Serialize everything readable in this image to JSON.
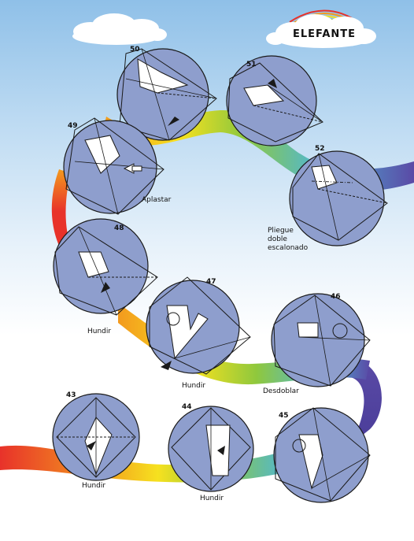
{
  "title": "ELEFANTE",
  "steps": [
    {
      "number": "43",
      "caption": "Hundir"
    },
    {
      "number": "44",
      "caption": "Hundir"
    },
    {
      "number": "45",
      "caption": ""
    },
    {
      "number": "46",
      "caption": "Desdoblar"
    },
    {
      "number": "47",
      "caption": "Hundir"
    },
    {
      "number": "48",
      "caption": "Hundir"
    },
    {
      "number": "49",
      "caption": "Aplastar"
    },
    {
      "number": "50",
      "caption": ""
    },
    {
      "number": "51",
      "caption": ""
    },
    {
      "number": "52",
      "caption": "Pliegue doble escalonado"
    }
  ],
  "colors": {
    "paper_blue": "#8e9ecd",
    "paper_white": "#ffffff",
    "sky_top": "#8fc0e8",
    "ribbon": [
      "#e8322a",
      "#f39a1e",
      "#f6e11f",
      "#8fc83d",
      "#4fb7d6",
      "#5a4aa6"
    ]
  }
}
